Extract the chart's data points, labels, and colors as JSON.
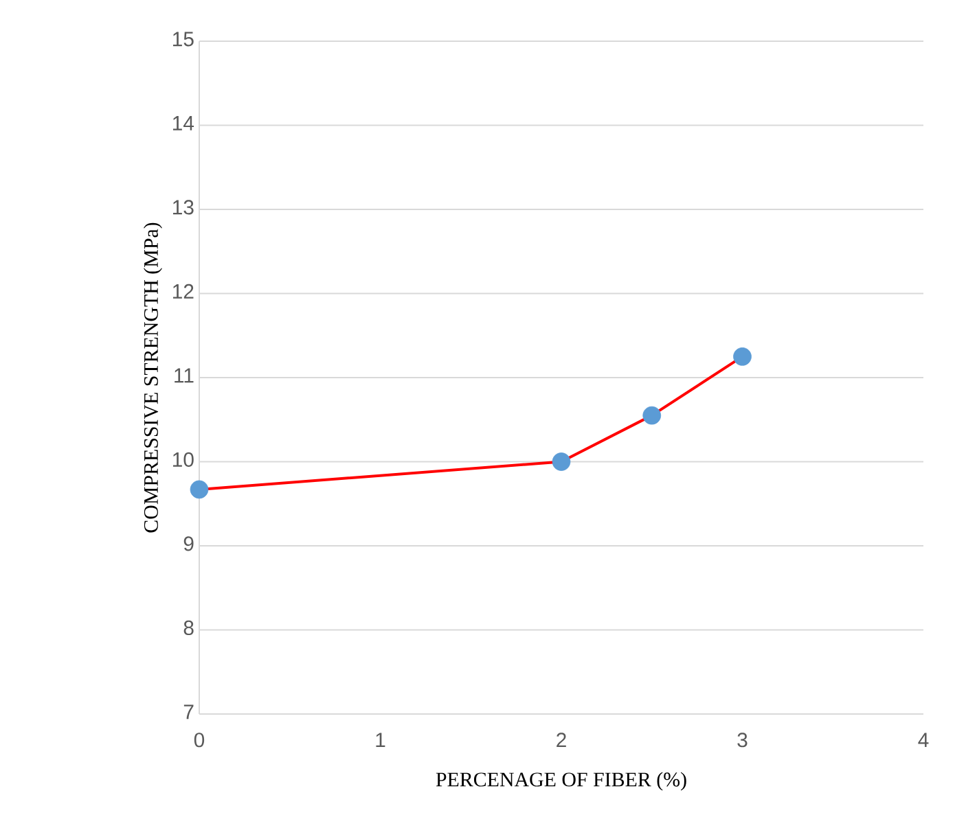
{
  "chart_data": {
    "type": "line",
    "xlabel": "PERCENAGE OF FIBER (%)",
    "ylabel": "COMPRESSIVE STRENGTH (MPa)",
    "x": [
      0,
      2,
      2.5,
      3
    ],
    "series": [
      {
        "color": "#ff0000",
        "colors": [
          "#5b9bd5",
          "#5b9bd5",
          "#5b9bd5",
          "#5b9bd5"
        ],
        "values": [
          9.67,
          10.0,
          10.55,
          11.25
        ]
      }
    ],
    "xlim": [
      0,
      4
    ],
    "xticks": [
      0,
      1,
      2,
      3,
      4
    ],
    "ylim": [
      7,
      15
    ],
    "yticks": [
      7,
      8,
      9,
      10,
      11,
      12,
      13,
      14,
      15
    ],
    "grid": "y",
    "marker": "circle",
    "line_style": "solid"
  }
}
